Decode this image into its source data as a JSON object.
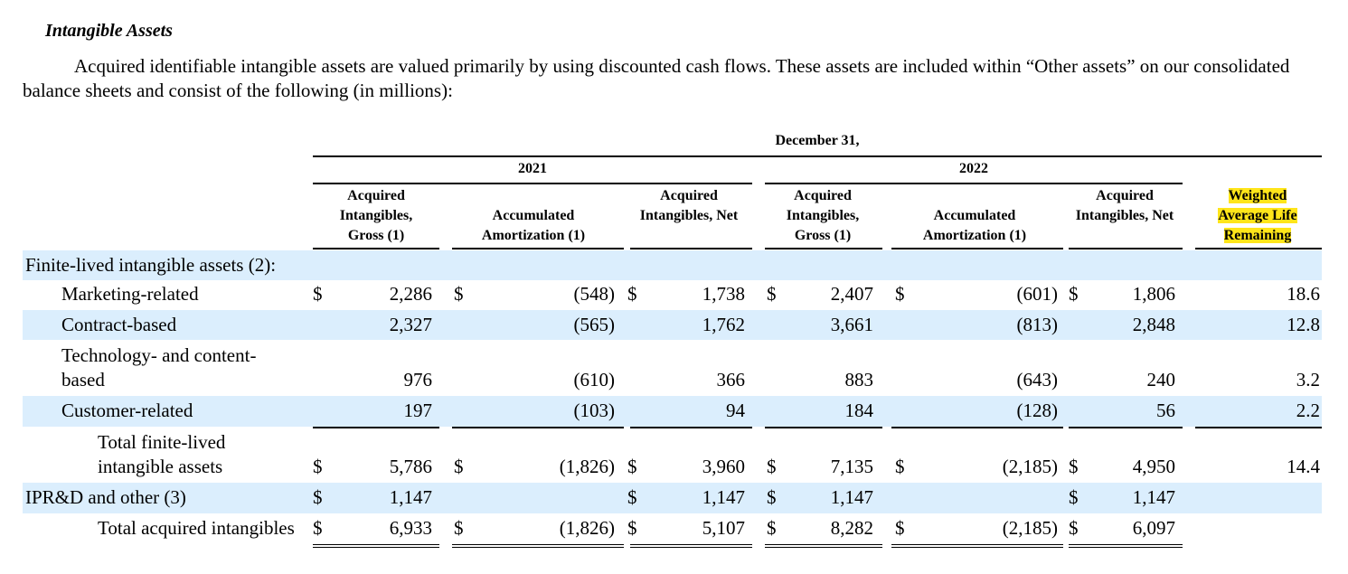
{
  "section": {
    "heading": "Intangible Assets",
    "paragraph": "Acquired identifiable intangible assets are valued primarily by using discounted cash flows. These assets are included within “Other assets” on our consolidated balance sheets and consist of the following (in millions):"
  },
  "table": {
    "period_header": "December 31,",
    "years": [
      "2021",
      "2022"
    ],
    "columns": {
      "gross": "Acquired Intangibles, Gross (1)",
      "amort": "Accumulated Amortization (1)",
      "net": "Acquired Intangibles, Net",
      "life": "Weighted Average Life Remaining"
    },
    "currency": "$",
    "section_label": "Finite-lived intangible assets (2):",
    "rows": [
      {
        "label": "Marketing-related",
        "v": [
          "2,286",
          "(548)",
          "1,738",
          "2,407",
          "(601)",
          "1,806",
          "18.6"
        ]
      },
      {
        "label": "Contract-based",
        "v": [
          "2,327",
          "(565)",
          "1,762",
          "3,661",
          "(813)",
          "2,848",
          "12.8"
        ]
      },
      {
        "label": "Technology- and content-based",
        "v": [
          "976",
          "(610)",
          "366",
          "883",
          "(643)",
          "240",
          "3.2"
        ]
      },
      {
        "label": "Customer-related",
        "v": [
          "197",
          "(103)",
          "94",
          "184",
          "(128)",
          "56",
          "2.2"
        ]
      },
      {
        "label": "Total finite-lived intangible assets",
        "v": [
          "5,786",
          "(1,826)",
          "3,960",
          "7,135",
          "(2,185)",
          "4,950",
          "14.4"
        ]
      },
      {
        "label": "IPR&D and other (3)",
        "v": [
          "1,147",
          "",
          "1,147",
          "1,147",
          "",
          "1,147",
          ""
        ]
      },
      {
        "label": "Total acquired intangibles",
        "v": [
          "6,933",
          "(1,826)",
          "5,107",
          "8,282",
          "(2,185)",
          "6,097",
          ""
        ]
      }
    ]
  }
}
